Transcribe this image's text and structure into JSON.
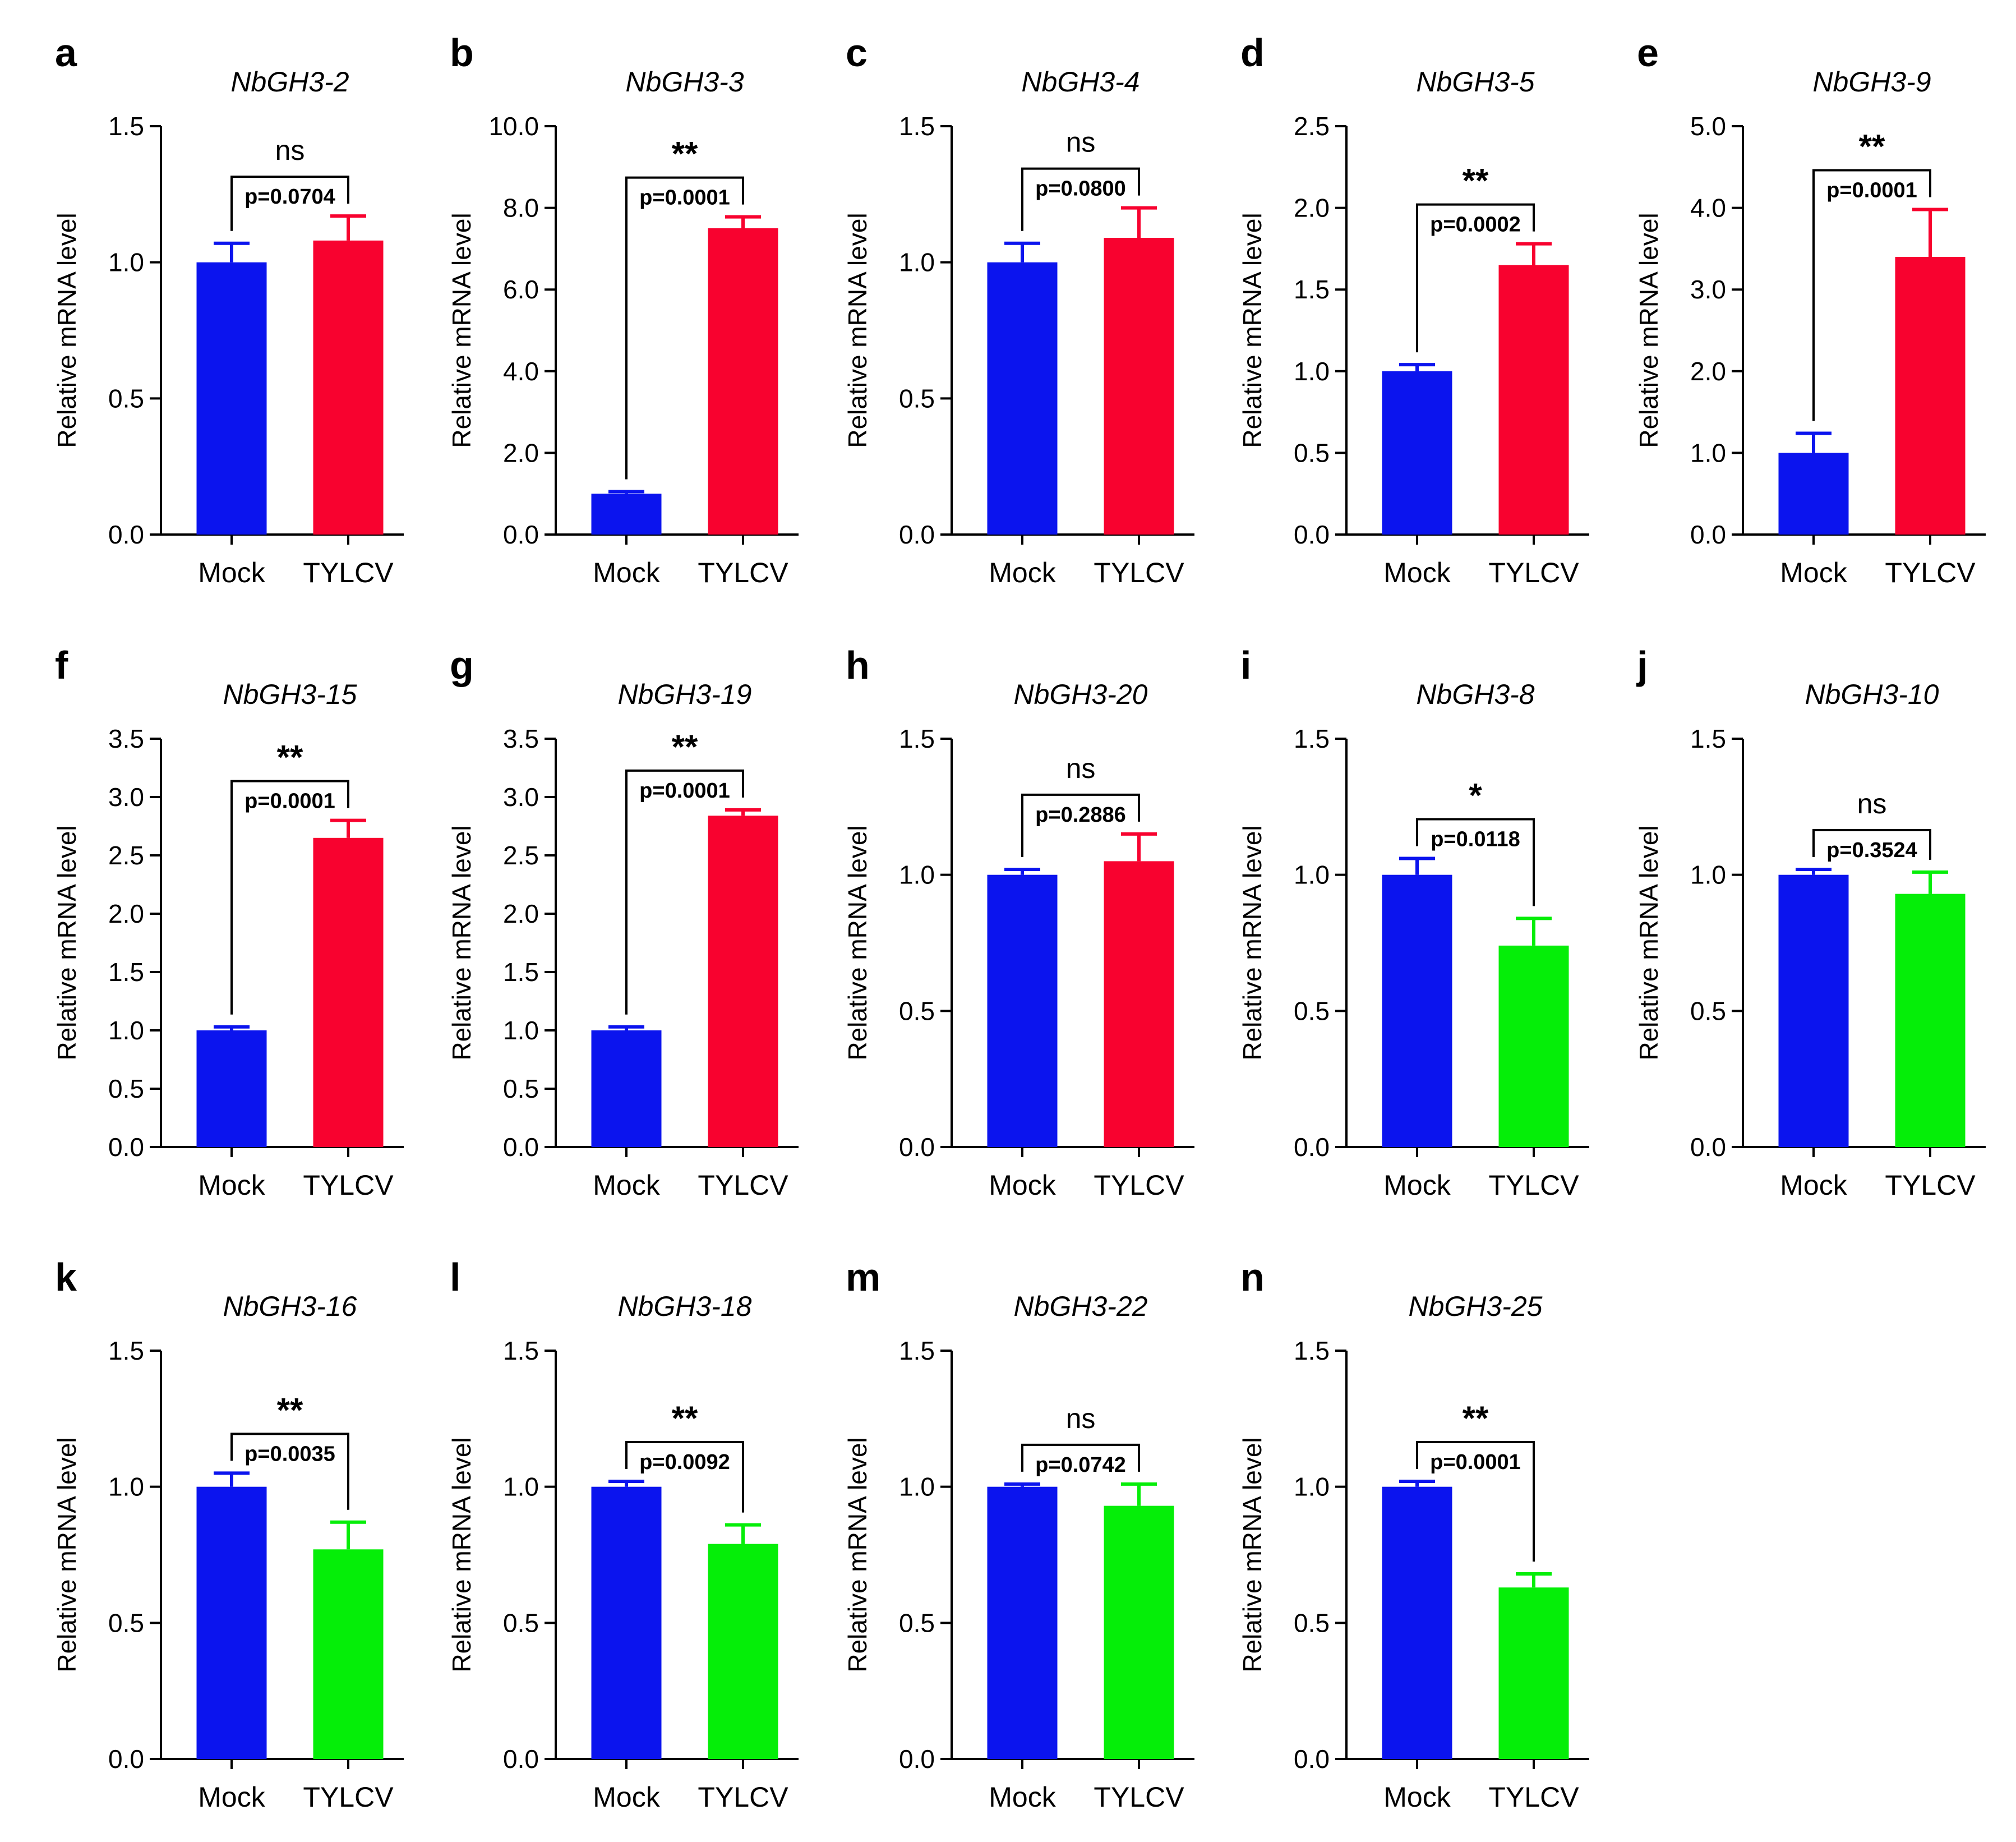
{
  "figure": {
    "y_axis_label": "Relative mRNA level",
    "categories": [
      "Mock",
      "TYLCV"
    ],
    "colors": {
      "mock": "#0b14ee",
      "up": "#f8022f",
      "down": "#05ee08"
    }
  },
  "chart_data": [
    {
      "type": "bar",
      "letter": "a",
      "title": "NbGH3-2",
      "categories": [
        "Mock",
        "TYLCV"
      ],
      "values": [
        1.0,
        1.08
      ],
      "errors": [
        0.07,
        0.09
      ],
      "ylim": [
        0,
        1.5
      ],
      "ticks": [
        0.0,
        0.5,
        1.0,
        1.5
      ],
      "tick_labels": [
        "0.0",
        "0.5",
        "1.0",
        "1.5"
      ],
      "p_value": "p=0.0704",
      "significance": "ns",
      "tylcv_color": "up",
      "ylabel": "Relative mRNA level"
    },
    {
      "type": "bar",
      "letter": "b",
      "title": "NbGH3-3",
      "categories": [
        "Mock",
        "TYLCV"
      ],
      "values": [
        1.0,
        7.5
      ],
      "errors": [
        0.05,
        0.28
      ],
      "ylim": [
        0,
        10
      ],
      "ticks": [
        0,
        2,
        4,
        6,
        8,
        10
      ],
      "tick_labels": [
        "0.0",
        "2.0",
        "4.0",
        "6.0",
        "8.0",
        "10.0"
      ],
      "p_value": "p=0.0001",
      "significance": "**",
      "tylcv_color": "up",
      "ylabel": "Relative mRNA level"
    },
    {
      "type": "bar",
      "letter": "c",
      "title": "NbGH3-4",
      "categories": [
        "Mock",
        "TYLCV"
      ],
      "values": [
        1.0,
        1.09
      ],
      "errors": [
        0.07,
        0.11
      ],
      "ylim": [
        0,
        1.5
      ],
      "ticks": [
        0.0,
        0.5,
        1.0,
        1.5
      ],
      "tick_labels": [
        "0.0",
        "0.5",
        "1.0",
        "1.5"
      ],
      "p_value": "p=0.0800",
      "significance": "ns",
      "tylcv_color": "up",
      "ylabel": "Relative mRNA level"
    },
    {
      "type": "bar",
      "letter": "d",
      "title": "NbGH3-5",
      "categories": [
        "Mock",
        "TYLCV"
      ],
      "values": [
        1.0,
        1.65
      ],
      "errors": [
        0.04,
        0.13
      ],
      "ylim": [
        0,
        2.5
      ],
      "ticks": [
        0.0,
        0.5,
        1.0,
        1.5,
        2.0,
        2.5
      ],
      "tick_labels": [
        "0.0",
        "0.5",
        "1.0",
        "1.5",
        "2.0",
        "2.5"
      ],
      "p_value": "p=0.0002",
      "significance": "**",
      "tylcv_color": "up",
      "ylabel": "Relative mRNA level"
    },
    {
      "type": "bar",
      "letter": "e",
      "title": "NbGH3-9",
      "categories": [
        "Mock",
        "TYLCV"
      ],
      "values": [
        1.0,
        3.4
      ],
      "errors": [
        0.24,
        0.58
      ],
      "ylim": [
        0,
        5
      ],
      "ticks": [
        0,
        1,
        2,
        3,
        4,
        5
      ],
      "tick_labels": [
        "0.0",
        "1.0",
        "2.0",
        "3.0",
        "4.0",
        "5.0"
      ],
      "p_value": "p=0.0001",
      "significance": "**",
      "tylcv_color": "up",
      "ylabel": "Relative mRNA level"
    },
    {
      "type": "bar",
      "letter": "f",
      "title": "NbGH3-15",
      "categories": [
        "Mock",
        "TYLCV"
      ],
      "values": [
        1.0,
        2.65
      ],
      "errors": [
        0.03,
        0.15
      ],
      "ylim": [
        0,
        3.5
      ],
      "ticks": [
        0.0,
        0.5,
        1.0,
        1.5,
        2.0,
        2.5,
        3.0,
        3.5
      ],
      "tick_labels": [
        "0.0",
        "0.5",
        "1.0",
        "1.5",
        "2.0",
        "2.5",
        "3.0",
        "3.5"
      ],
      "p_value": "p=0.0001",
      "significance": "**",
      "tylcv_color": "up",
      "ylabel": "Relative mRNA level"
    },
    {
      "type": "bar",
      "letter": "g",
      "title": "NbGH3-19",
      "categories": [
        "Mock",
        "TYLCV"
      ],
      "values": [
        1.0,
        2.84
      ],
      "errors": [
        0.03,
        0.05
      ],
      "ylim": [
        0,
        3.5
      ],
      "ticks": [
        0.0,
        0.5,
        1.0,
        1.5,
        2.0,
        2.5,
        3.0,
        3.5
      ],
      "tick_labels": [
        "0.0",
        "0.5",
        "1.0",
        "1.5",
        "2.0",
        "2.5",
        "3.0",
        "3.5"
      ],
      "p_value": "p=0.0001",
      "significance": "**",
      "tylcv_color": "up",
      "ylabel": "Relative mRNA level"
    },
    {
      "type": "bar",
      "letter": "h",
      "title": "NbGH3-20",
      "categories": [
        "Mock",
        "TYLCV"
      ],
      "values": [
        1.0,
        1.05
      ],
      "errors": [
        0.02,
        0.1
      ],
      "ylim": [
        0,
        1.5
      ],
      "ticks": [
        0.0,
        0.5,
        1.0,
        1.5
      ],
      "tick_labels": [
        "0.0",
        "0.5",
        "1.0",
        "1.5"
      ],
      "p_value": "p=0.2886",
      "significance": "ns",
      "tylcv_color": "up",
      "ylabel": "Relative mRNA level"
    },
    {
      "type": "bar",
      "letter": "i",
      "title": "NbGH3-8",
      "categories": [
        "Mock",
        "TYLCV"
      ],
      "values": [
        1.0,
        0.74
      ],
      "errors": [
        0.06,
        0.1
      ],
      "ylim": [
        0,
        1.5
      ],
      "ticks": [
        0.0,
        0.5,
        1.0,
        1.5
      ],
      "tick_labels": [
        "0.0",
        "0.5",
        "1.0",
        "1.5"
      ],
      "p_value": "p=0.0118",
      "significance": "*",
      "tylcv_color": "down",
      "ylabel": "Relative mRNA level"
    },
    {
      "type": "bar",
      "letter": "j",
      "title": "NbGH3-10",
      "categories": [
        "Mock",
        "TYLCV"
      ],
      "values": [
        1.0,
        0.93
      ],
      "errors": [
        0.02,
        0.08
      ],
      "ylim": [
        0,
        1.5
      ],
      "ticks": [
        0.0,
        0.5,
        1.0,
        1.5
      ],
      "tick_labels": [
        "0.0",
        "0.5",
        "1.0",
        "1.5"
      ],
      "p_value": "p=0.3524",
      "significance": "ns",
      "tylcv_color": "down",
      "ylabel": "Relative mRNA level"
    },
    {
      "type": "bar",
      "letter": "k",
      "title": "NbGH3-16",
      "categories": [
        "Mock",
        "TYLCV"
      ],
      "values": [
        1.0,
        0.77
      ],
      "errors": [
        0.05,
        0.1
      ],
      "ylim": [
        0,
        1.5
      ],
      "ticks": [
        0.0,
        0.5,
        1.0,
        1.5
      ],
      "tick_labels": [
        "0.0",
        "0.5",
        "1.0",
        "1.5"
      ],
      "p_value": "p=0.0035",
      "significance": "**",
      "tylcv_color": "down",
      "ylabel": "Relative mRNA level"
    },
    {
      "type": "bar",
      "letter": "l",
      "title": "NbGH3-18",
      "categories": [
        "Mock",
        "TYLCV"
      ],
      "values": [
        1.0,
        0.79
      ],
      "errors": [
        0.02,
        0.07
      ],
      "ylim": [
        0,
        1.5
      ],
      "ticks": [
        0.0,
        0.5,
        1.0,
        1.5
      ],
      "tick_labels": [
        "0.0",
        "0.5",
        "1.0",
        "1.5"
      ],
      "p_value": "p=0.0092",
      "significance": "**",
      "tylcv_color": "down",
      "ylabel": "Relative mRNA level"
    },
    {
      "type": "bar",
      "letter": "m",
      "title": "NbGH3-22",
      "categories": [
        "Mock",
        "TYLCV"
      ],
      "values": [
        1.0,
        0.93
      ],
      "errors": [
        0.01,
        0.08
      ],
      "ylim": [
        0,
        1.5
      ],
      "ticks": [
        0.0,
        0.5,
        1.0,
        1.5
      ],
      "tick_labels": [
        "0.0",
        "0.5",
        "1.0",
        "1.5"
      ],
      "p_value": "p=0.0742",
      "significance": "ns",
      "tylcv_color": "down",
      "ylabel": "Relative mRNA level"
    },
    {
      "type": "bar",
      "letter": "n",
      "title": "NbGH3-25",
      "categories": [
        "Mock",
        "TYLCV"
      ],
      "values": [
        1.0,
        0.63
      ],
      "errors": [
        0.02,
        0.05
      ],
      "ylim": [
        0,
        1.5
      ],
      "ticks": [
        0.0,
        0.5,
        1.0,
        1.5
      ],
      "tick_labels": [
        "0.0",
        "0.5",
        "1.0",
        "1.5"
      ],
      "p_value": "p=0.0001",
      "significance": "**",
      "tylcv_color": "down",
      "ylabel": "Relative mRNA level"
    }
  ]
}
